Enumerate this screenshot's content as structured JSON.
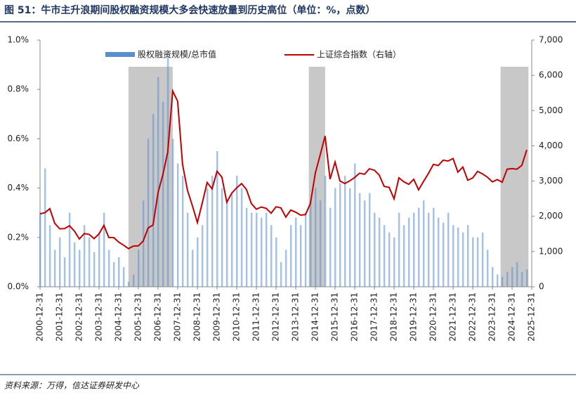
{
  "chart_data": {
    "type": "bar-line",
    "title": "图 51：牛市主升浪期间股权融资规模大多会快速放量到历史高位（单位：%，点数）",
    "source": "资料来源：万得，信达证券研发中心",
    "x": [
      "2000-12-31",
      "2001-03-31",
      "2001-06-30",
      "2001-09-30",
      "2001-12-31",
      "2002-03-31",
      "2002-06-30",
      "2002-09-30",
      "2002-12-31",
      "2003-03-31",
      "2003-06-30",
      "2003-09-30",
      "2003-12-31",
      "2004-03-31",
      "2004-06-30",
      "2004-09-30",
      "2004-12-31",
      "2005-03-31",
      "2005-06-30",
      "2005-09-30",
      "2005-12-31",
      "2006-03-31",
      "2006-06-30",
      "2006-09-30",
      "2006-12-31",
      "2007-03-31",
      "2007-06-30",
      "2007-09-30",
      "2007-12-31",
      "2008-03-31",
      "2008-06-30",
      "2008-09-30",
      "2008-12-31",
      "2009-03-31",
      "2009-06-30",
      "2009-09-30",
      "2009-12-31",
      "2010-03-31",
      "2010-06-30",
      "2010-09-30",
      "2010-12-31",
      "2011-03-31",
      "2011-06-30",
      "2011-09-30",
      "2011-12-31",
      "2012-03-31",
      "2012-06-30",
      "2012-09-30",
      "2012-12-31",
      "2013-03-31",
      "2013-06-30",
      "2013-09-30",
      "2013-12-31",
      "2014-03-31",
      "2014-06-30",
      "2014-09-30",
      "2014-12-31",
      "2015-03-31",
      "2015-06-30",
      "2015-09-30",
      "2015-12-31",
      "2016-03-31",
      "2016-06-30",
      "2016-09-30",
      "2016-12-31",
      "2017-03-31",
      "2017-06-30",
      "2017-09-30",
      "2017-12-31",
      "2018-03-31",
      "2018-06-30",
      "2018-09-30",
      "2018-12-31",
      "2019-03-31",
      "2019-06-30",
      "2019-09-30",
      "2019-12-31",
      "2020-03-31",
      "2020-06-30",
      "2020-09-30",
      "2020-12-31",
      "2021-03-31",
      "2021-06-30",
      "2021-09-30",
      "2021-12-31",
      "2022-03-31",
      "2022-06-30",
      "2022-09-30",
      "2022-12-31",
      "2023-03-31",
      "2023-06-30",
      "2023-09-30",
      "2023-12-31",
      "2024-03-31",
      "2024-06-30",
      "2024-09-30",
      "2024-12-31",
      "2025-03-31",
      "2025-06-30",
      "2025-09-30"
    ],
    "xticks": [
      "2000-12-31",
      "2001-12-31",
      "2002-12-31",
      "2003-12-31",
      "2004-12-31",
      "2005-12-31",
      "2006-12-31",
      "2007-12-31",
      "2008-12-31",
      "2009-12-31",
      "2010-12-31",
      "2011-12-31",
      "2012-12-31",
      "2013-12-31",
      "2014-12-31",
      "2015-12-31",
      "2016-12-31",
      "2017-12-31",
      "2018-12-31",
      "2019-12-31",
      "2020-12-31",
      "2021-12-31",
      "2022-12-31",
      "2023-12-31",
      "2024-12-31",
      "2025-12-31"
    ],
    "xlim": [
      "2000-12-31",
      "2025-12-31"
    ],
    "highlights": [
      [
        "2005-06-30",
        "2007-09-30"
      ],
      [
        "2014-08-31",
        "2015-06-30"
      ],
      [
        "2024-05-31",
        "2025-10-31"
      ]
    ],
    "series": [
      {
        "name": "股权融资规模/总市值",
        "color": "#5b8fd0",
        "values": [
          0.3,
          0.48,
          0.25,
          0.15,
          0.2,
          0.12,
          0.3,
          0.18,
          0.15,
          0.25,
          0.2,
          0.14,
          0.22,
          0.3,
          0.15,
          0.1,
          0.12,
          0.08,
          0.02,
          0.05,
          0.15,
          0.35,
          0.6,
          0.7,
          0.85,
          0.75,
          0.95,
          0.6,
          0.5,
          0.45,
          0.3,
          0.15,
          0.2,
          0.25,
          0.4,
          0.45,
          0.55,
          0.4,
          0.35,
          0.38,
          0.45,
          0.4,
          0.32,
          0.3,
          0.3,
          0.28,
          0.3,
          0.25,
          0.2,
          0.1,
          0.15,
          0.25,
          0.28,
          0.25,
          0.3,
          0.35,
          0.4,
          0.35,
          0.45,
          0.32,
          0.4,
          0.42,
          0.45,
          0.4,
          0.5,
          0.38,
          0.35,
          0.38,
          0.3,
          0.28,
          0.25,
          0.22,
          0.2,
          0.3,
          0.25,
          0.28,
          0.3,
          0.32,
          0.35,
          0.3,
          0.32,
          0.28,
          0.26,
          0.3,
          0.25,
          0.24,
          0.22,
          0.25,
          0.2,
          0.2,
          0.22,
          0.15,
          0.08,
          0.05,
          0.04,
          0.06,
          0.08,
          0.1,
          0.06,
          0.07
        ]
      },
      {
        "name": "上证综合指数（右轴）",
        "color": "#c00000",
        "axis": "y2",
        "values": [
          2073,
          2100,
          2218,
          1800,
          1646,
          1650,
          1732,
          1581,
          1357,
          1510,
          1487,
          1367,
          1497,
          1742,
          1399,
          1396,
          1267,
          1181,
          1081,
          1155,
          1161,
          1299,
          1672,
          1752,
          2675,
          3183,
          3821,
          5552,
          5262,
          3473,
          2736,
          2293,
          1821,
          2373,
          2959,
          2779,
          3277,
          3109,
          2398,
          2656,
          2808,
          2928,
          2762,
          2359,
          2199,
          2263,
          2225,
          2086,
          2269,
          2237,
          1979,
          2175,
          2116,
          2033,
          2048,
          2364,
          3235,
          3748,
          4277,
          3053,
          3539,
          3004,
          2930,
          3005,
          3104,
          3223,
          3192,
          3349,
          3307,
          3169,
          2847,
          2821,
          2494,
          3091,
          2979,
          2905,
          3050,
          2750,
          2985,
          3218,
          3473,
          3441,
          3591,
          3568,
          3640,
          3252,
          3399,
          3024,
          3089,
          3273,
          3202,
          3110,
          2975,
          3041,
          2967,
          3336,
          3352,
          3336,
          3444,
          3883
        ]
      }
    ],
    "ylim": [
      0,
      1.0
    ],
    "yticks": [
      {
        "value": 0,
        "label": "0.0%"
      },
      {
        "value": 0.2,
        "label": "0.2%"
      },
      {
        "value": 0.4,
        "label": "0.4%"
      },
      {
        "value": 0.6,
        "label": "0.6%"
      },
      {
        "value": 0.8,
        "label": "0.8%"
      },
      {
        "value": 1.0,
        "label": "1.0%"
      }
    ],
    "y2lim": [
      0,
      7000
    ],
    "y2ticks": [
      0,
      {
        "value": 1000,
        "label": "1,000"
      },
      {
        "value": 2000,
        "label": "2,000"
      },
      {
        "value": 3000,
        "label": "3,000"
      },
      {
        "value": 4000,
        "label": "4,000"
      },
      {
        "value": 5000,
        "label": "5,000"
      },
      {
        "value": 6000,
        "label": "6,000"
      },
      {
        "value": 7000,
        "label": "7,000"
      }
    ]
  }
}
